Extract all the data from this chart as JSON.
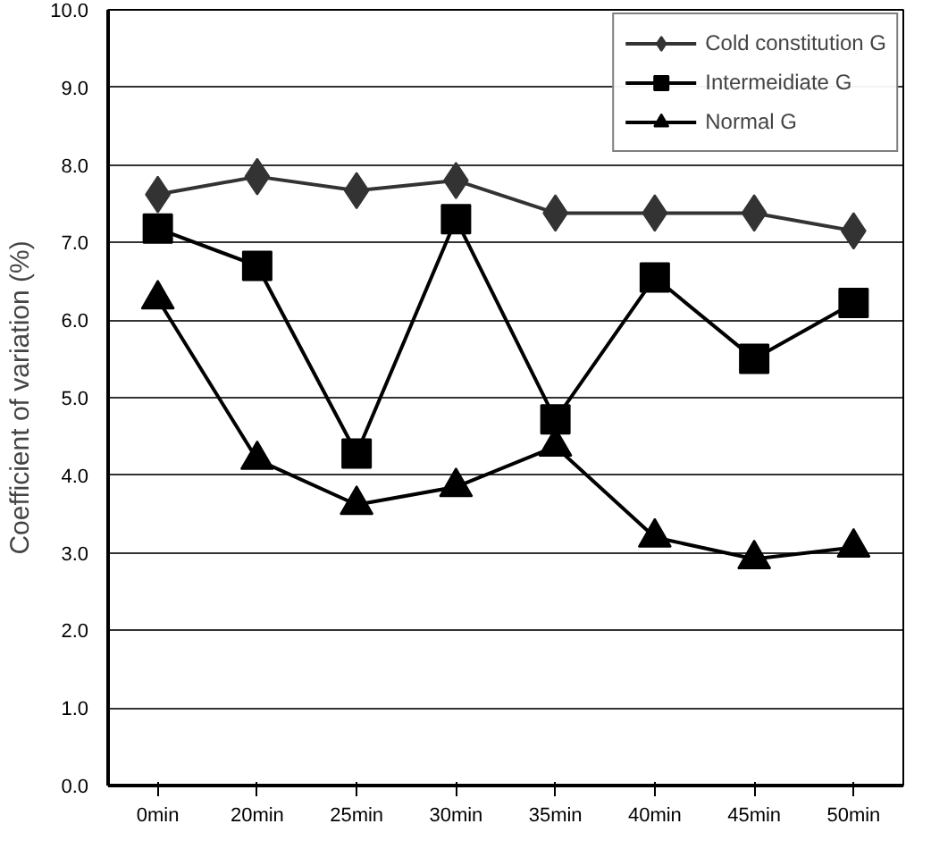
{
  "chart_data": {
    "type": "line",
    "ylabel": "Coefficient of variation (%)",
    "categories": [
      "0min",
      "20min",
      "25min",
      "30min",
      "35min",
      "40min",
      "45min",
      "50min"
    ],
    "ylim": [
      0,
      10
    ],
    "yticks": [
      {
        "value": 0,
        "label": "0.0"
      },
      {
        "value": 1,
        "label": "1.0"
      },
      {
        "value": 2,
        "label": "2.0"
      },
      {
        "value": 3,
        "label": "3.0"
      },
      {
        "value": 4,
        "label": "4.0"
      },
      {
        "value": 5,
        "label": "5.0"
      },
      {
        "value": 6,
        "label": "6.0"
      },
      {
        "value": 7,
        "label": "7.0"
      },
      {
        "value": 8,
        "label": "8.0"
      },
      {
        "value": 9,
        "label": "9.0"
      },
      {
        "value": 10,
        "label": "10.0"
      }
    ],
    "grid": "y",
    "legend": "top right",
    "series": [
      {
        "name": "Cold constitution G",
        "color": "#333333",
        "marker": "diamond",
        "values": [
          7.62,
          7.85,
          7.67,
          7.8,
          7.38,
          7.38,
          7.38,
          7.15
        ]
      },
      {
        "name": "Intermeidiate G",
        "color": "#000000",
        "marker": "square",
        "values": [
          7.18,
          6.7,
          4.28,
          7.3,
          4.72,
          6.55,
          5.5,
          6.22
        ]
      },
      {
        "name": "Normal G",
        "color": "#000000",
        "marker": "triangle",
        "values": [
          6.27,
          4.2,
          3.62,
          3.85,
          4.37,
          3.2,
          2.92,
          3.07
        ]
      }
    ]
  }
}
